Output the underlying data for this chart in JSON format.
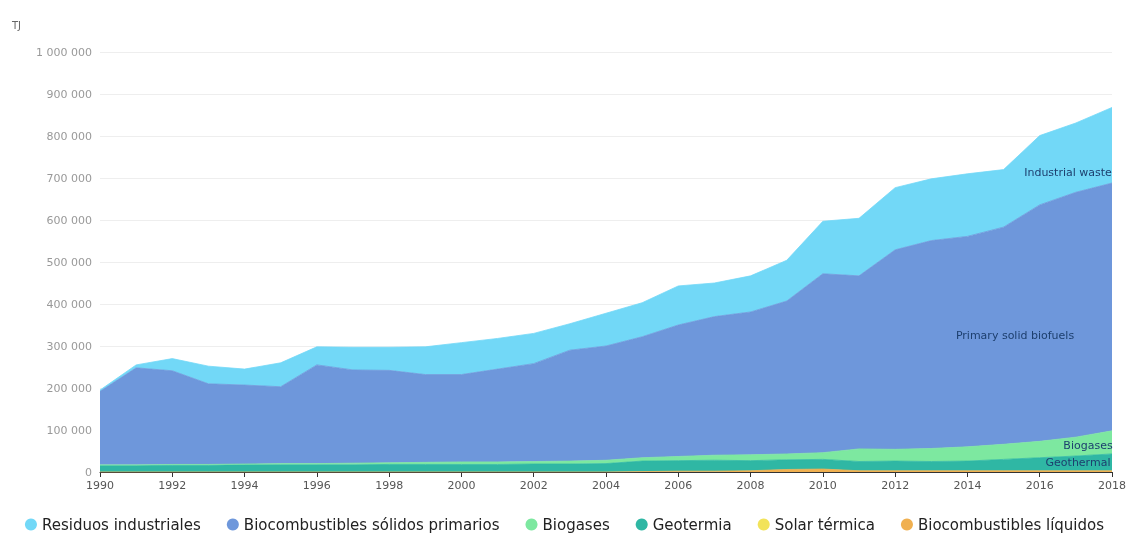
{
  "chart_data": {
    "type": "area",
    "stacked": true,
    "ylabel": "TJ",
    "categories": [
      "1990",
      null,
      "1992",
      null,
      "1994",
      null,
      "1996",
      null,
      "1998",
      null,
      "2000",
      null,
      "2002",
      null,
      "2004",
      null,
      "2006",
      null,
      "2008",
      null,
      "2010",
      null,
      "2012",
      null,
      "2014",
      null,
      "2016",
      null,
      "2018"
    ],
    "series": [
      {
        "name": "Biocombustibles líquidos",
        "color": "#f0b050",
        "values": [
          0,
          0,
          0,
          0,
          0,
          0,
          0,
          0,
          0,
          0,
          0,
          0,
          0,
          0,
          0,
          1000,
          2000,
          2000,
          3000,
          6000,
          7000,
          3000,
          3000,
          3000,
          3000,
          3000,
          3000,
          3000,
          3000
        ]
      },
      {
        "name": "Solar térmica",
        "color": "#f2e35a",
        "values": [
          null,
          null,
          null,
          null,
          null,
          null,
          null,
          null,
          null,
          null,
          null,
          null,
          null,
          null,
          null,
          null,
          null,
          null,
          null,
          null,
          null,
          null,
          null,
          null,
          null,
          null,
          null,
          null,
          null
        ]
      },
      {
        "name": "Geotermia",
        "color": "#2fb7a4",
        "values": [
          15000,
          15000,
          16000,
          16000,
          17000,
          17000,
          17000,
          17000,
          18000,
          18000,
          18000,
          18000,
          19000,
          19000,
          20000,
          25000,
          25000,
          26000,
          24000,
          23000,
          23000,
          22000,
          23000,
          22000,
          23000,
          27000,
          31000,
          35000,
          40000
        ]
      },
      {
        "name": "Biogases",
        "color": "#7de8a0",
        "values": [
          2000,
          2000,
          2000,
          2000,
          2000,
          3000,
          3000,
          4000,
          4000,
          5000,
          6000,
          6000,
          6000,
          7000,
          8000,
          8000,
          10000,
          12000,
          14000,
          14000,
          16000,
          30000,
          28000,
          31000,
          34000,
          36000,
          39000,
          45000,
          55000
        ]
      },
      {
        "name": "Biocombustibles sólidos primarios",
        "color": "#6e97db",
        "values": [
          175000,
          231000,
          223000,
          192000,
          188000,
          183000,
          235000,
          222000,
          220000,
          209000,
          208000,
          221000,
          233000,
          264000,
          272000,
          288000,
          313000,
          330000,
          340000,
          364000,
          426000,
          412000,
          475000,
          495000,
          501000,
          517000,
          563000,
          583000,
          590000
        ]
      },
      {
        "name": "Residuos industriales",
        "color": "#72d8f7",
        "values": [
          3000,
          7000,
          29000,
          42000,
          38000,
          57000,
          43000,
          54000,
          55000,
          66000,
          76000,
          73000,
          72000,
          63000,
          78000,
          81000,
          93000,
          80000,
          86000,
          97000,
          125000,
          137000,
          148000,
          147000,
          149000,
          137000,
          165000,
          165000,
          180000
        ]
      }
    ],
    "ylim": [
      0,
      1000000
    ],
    "yticks": [
      0,
      {
        "value": 100000,
        "label": "100 000"
      },
      {
        "value": 200000,
        "label": "200 000"
      },
      {
        "value": 300000,
        "label": "300 000"
      },
      {
        "value": 400000,
        "label": "400 000"
      },
      {
        "value": 500000,
        "label": "500 000"
      },
      {
        "value": 600000,
        "label": "600 000"
      },
      {
        "value": 700000,
        "label": "700 000"
      },
      {
        "value": 800000,
        "label": "800 000"
      },
      {
        "value": 900000,
        "label": "900 000"
      },
      {
        "value": 1000000,
        "label": "1 000 000"
      }
    ],
    "annotations": [
      "Industrial waste",
      "Primary solid biofuels",
      "Biogases",
      "Geothermal"
    ],
    "grid": "y",
    "legend": "bottom",
    "marker": "none"
  }
}
